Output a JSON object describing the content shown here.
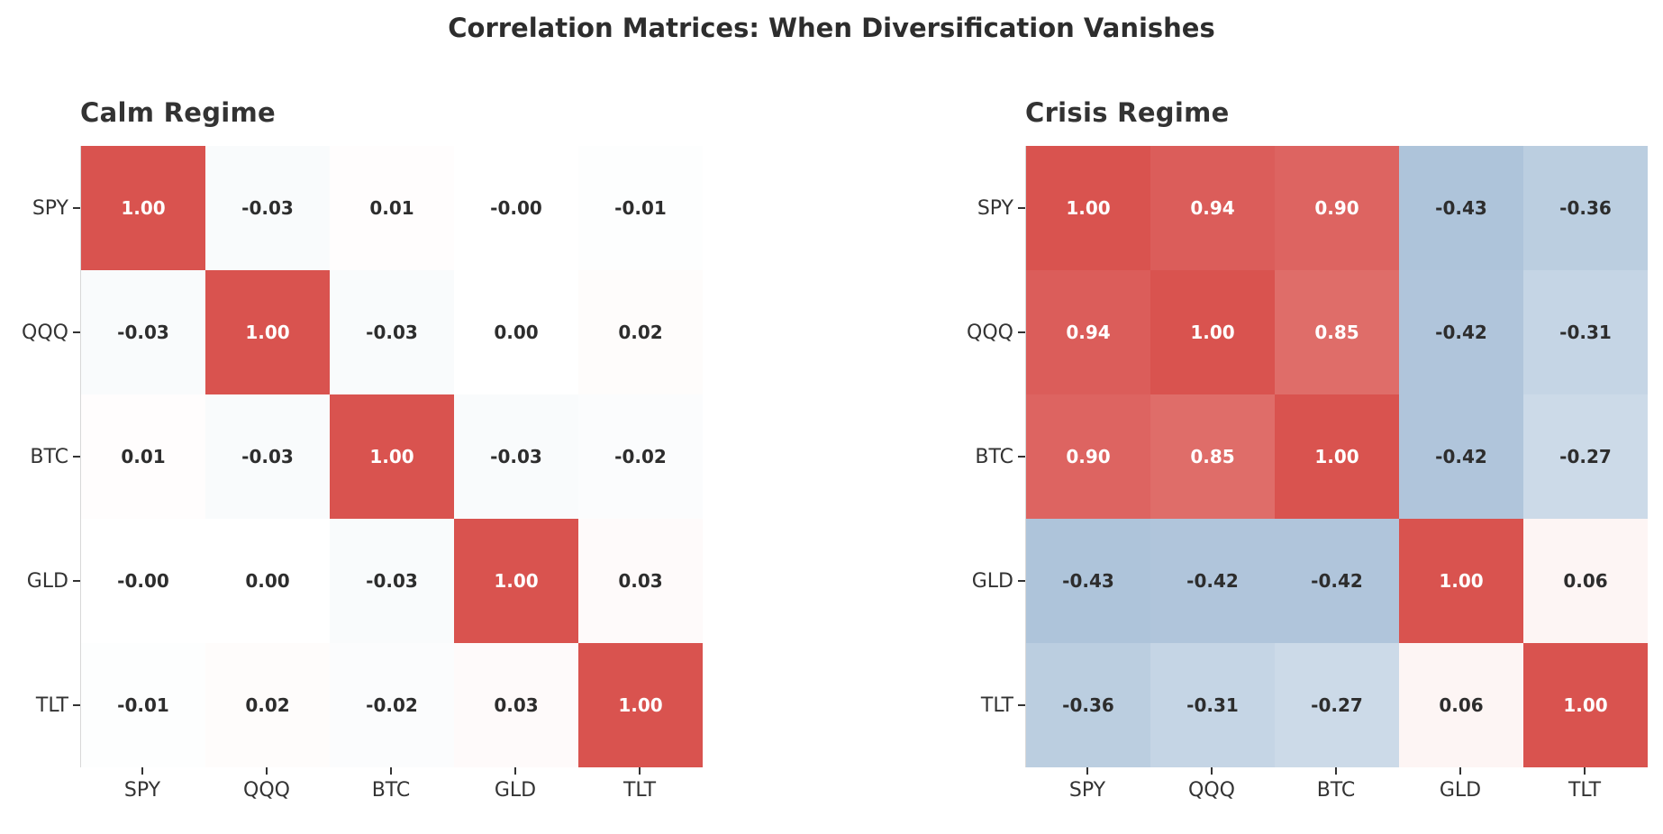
{
  "title": "Correlation Matrices: When Diversification Vanishes",
  "colors": {
    "positive_end": "#d9534f",
    "negative_end": "#4376aa",
    "cell_text_dark": "#2d2d2d",
    "cell_text_light": "#ffffff",
    "axis_text": "#333333",
    "title_text": "#2d2d2d"
  },
  "chart_data": [
    {
      "type": "heatmap",
      "title": "Calm Regime",
      "x_labels": [
        "SPY",
        "QQQ",
        "BTC",
        "GLD",
        "TLT"
      ],
      "y_labels": [
        "SPY",
        "QQQ",
        "BTC",
        "GLD",
        "TLT"
      ],
      "vmin": -1,
      "vmax": 1,
      "values": [
        [
          1.0,
          -0.03,
          0.01,
          0.0,
          -0.01
        ],
        [
          -0.03,
          1.0,
          -0.03,
          0.0,
          0.02
        ],
        [
          0.01,
          -0.03,
          1.0,
          -0.03,
          -0.02
        ],
        [
          0.0,
          0.0,
          -0.03,
          1.0,
          0.03
        ],
        [
          -0.01,
          0.02,
          -0.02,
          0.03,
          1.0
        ]
      ],
      "labels": [
        [
          "1.00",
          "-0.03",
          "0.01",
          "-0.00",
          "-0.01"
        ],
        [
          "-0.03",
          "1.00",
          "-0.03",
          "0.00",
          "0.02"
        ],
        [
          "0.01",
          "-0.03",
          "1.00",
          "-0.03",
          "-0.02"
        ],
        [
          "-0.00",
          "0.00",
          "-0.03",
          "1.00",
          "0.03"
        ],
        [
          "-0.01",
          "0.02",
          "-0.02",
          "0.03",
          "1.00"
        ]
      ]
    },
    {
      "type": "heatmap",
      "title": "Crisis Regime",
      "x_labels": [
        "SPY",
        "QQQ",
        "BTC",
        "GLD",
        "TLT"
      ],
      "y_labels": [
        "SPY",
        "QQQ",
        "BTC",
        "GLD",
        "TLT"
      ],
      "vmin": -1,
      "vmax": 1,
      "values": [
        [
          1.0,
          0.94,
          0.9,
          -0.43,
          -0.36
        ],
        [
          0.94,
          1.0,
          0.85,
          -0.42,
          -0.31
        ],
        [
          0.9,
          0.85,
          1.0,
          -0.42,
          -0.27
        ],
        [
          -0.43,
          -0.42,
          -0.42,
          1.0,
          0.06
        ],
        [
          -0.36,
          -0.31,
          -0.27,
          0.06,
          1.0
        ]
      ],
      "labels": [
        [
          "1.00",
          "0.94",
          "0.90",
          "-0.43",
          "-0.36"
        ],
        [
          "0.94",
          "1.00",
          "0.85",
          "-0.42",
          "-0.31"
        ],
        [
          "0.90",
          "0.85",
          "1.00",
          "-0.42",
          "-0.27"
        ],
        [
          "-0.43",
          "-0.42",
          "-0.42",
          "1.00",
          "0.06"
        ],
        [
          "-0.36",
          "-0.31",
          "-0.27",
          "0.06",
          "1.00"
        ]
      ]
    }
  ]
}
